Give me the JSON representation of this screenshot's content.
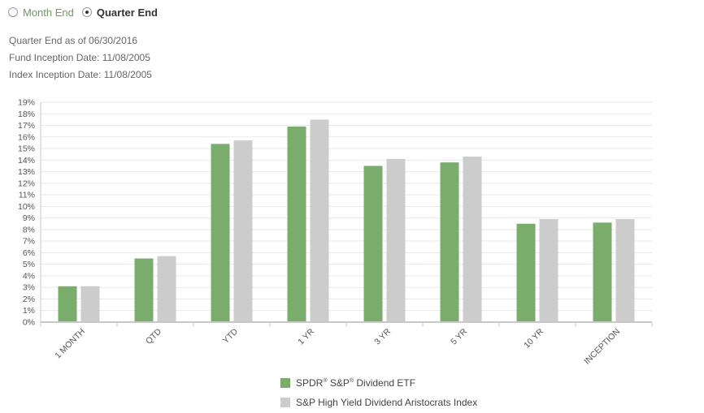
{
  "period_selector": {
    "options": [
      {
        "label": "Month End",
        "selected": false
      },
      {
        "label": "Quarter End",
        "selected": true
      }
    ]
  },
  "info": {
    "quarter_end": "Quarter End as of 06/30/2016",
    "fund_inception": "Fund Inception Date: 11/08/2005",
    "index_inception": "Index Inception Date: 11/08/2005"
  },
  "colors": {
    "fund": "#7aac6b",
    "index": "#cccccc",
    "grid": "#e9e9e9",
    "axis": "#c8c8c8"
  },
  "legend": {
    "fund": {
      "part1": "SPDR",
      "sup1": "®",
      "part2": " S&P",
      "sup2": "®",
      "part3": " Dividend ETF"
    },
    "index": {
      "label": "S&P High Yield Dividend Aristocrats Index"
    }
  },
  "chart_data": {
    "type": "bar",
    "categories": [
      "1 MONTH",
      "QTD",
      "YTD",
      "1 YR",
      "3 YR",
      "5 YR",
      "10 YR",
      "INCEPTION"
    ],
    "series": [
      {
        "name": "SPDR® S&P® Dividend ETF",
        "values": [
          3.1,
          5.5,
          15.4,
          16.9,
          13.5,
          13.8,
          8.5,
          8.6
        ]
      },
      {
        "name": "S&P High Yield Dividend Aristocrats Index",
        "values": [
          3.1,
          5.7,
          15.7,
          17.5,
          14.1,
          14.3,
          8.9,
          8.9
        ]
      }
    ],
    "ylim": [
      0,
      19
    ],
    "yticks": [
      "0%",
      "1%",
      "2%",
      "3%",
      "4%",
      "5%",
      "6%",
      "7%",
      "8%",
      "9%",
      "10%",
      "11%",
      "12%",
      "13%",
      "14%",
      "15%",
      "16%",
      "17%",
      "18%",
      "19%"
    ],
    "grid": true,
    "legend_position": "bottom"
  }
}
